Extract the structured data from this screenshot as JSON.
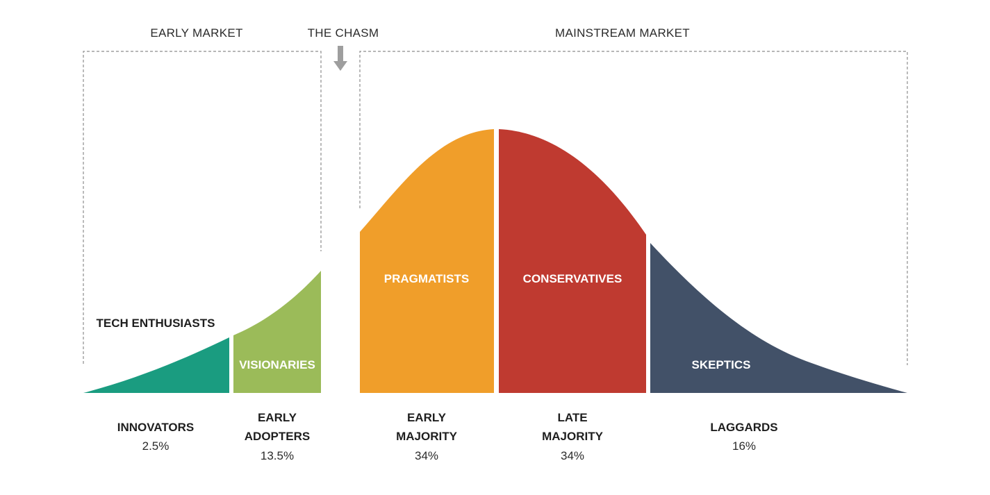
{
  "markets": {
    "early": "EARLY MARKET",
    "chasm": "THE CHASM",
    "mainstream": "MAINSTREAM MARKET"
  },
  "segments": [
    {
      "id": "innovators",
      "label": "TECH ENTHUSIASTS",
      "color": "#1a9c80"
    },
    {
      "id": "early-adopters",
      "label": "VISIONARIES",
      "color": "#9bbb59"
    },
    {
      "id": "early-majority",
      "label": "PRAGMATISTS",
      "color": "#f09e2a"
    },
    {
      "id": "late-majority",
      "label": "CONSERVATIVES",
      "color": "#bf3a30"
    },
    {
      "id": "laggards",
      "label": "SKEPTICS",
      "color": "#425168"
    }
  ],
  "groups": [
    {
      "name_line1": "INNOVATORS",
      "name_line2": "",
      "percent": "2.5%"
    },
    {
      "name_line1": "EARLY",
      "name_line2": "ADOPTERS",
      "percent": "13.5%"
    },
    {
      "name_line1": "EARLY",
      "name_line2": "MAJORITY",
      "percent": "34%"
    },
    {
      "name_line1": "LATE",
      "name_line2": "MAJORITY",
      "percent": "34%"
    },
    {
      "name_line1": "LAGGARDS",
      "name_line2": "",
      "percent": "16%"
    }
  ],
  "colors": {
    "arrow": "#9e9e9e",
    "bracket": "#8c8c8c"
  }
}
